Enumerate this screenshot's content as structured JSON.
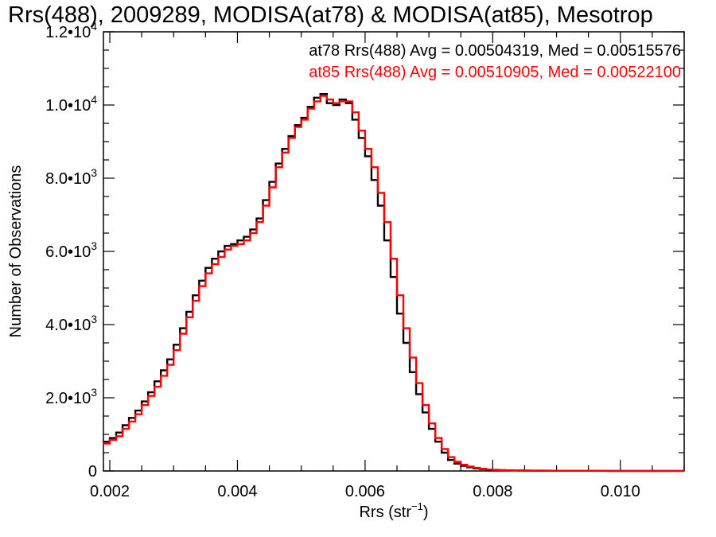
{
  "chart_data": {
    "type": "histogram-step",
    "title": "Rrs(488), 2009289, MODISA(at78) & MODISA(at85), Mesotrop",
    "xlabel": "Rrs (str",
    "xlabel_superscript": "−1",
    "xlabel_close": ")",
    "ylabel": "Number of Observations",
    "xlim": [
      0.0019,
      0.011
    ],
    "ylim": [
      0,
      12000
    ],
    "x_ticks": [
      {
        "value": 0.002,
        "label": "0.002"
      },
      {
        "value": 0.004,
        "label": "0.004"
      },
      {
        "value": 0.006,
        "label": "0.006"
      },
      {
        "value": 0.008,
        "label": "0.008"
      },
      {
        "value": 0.01,
        "label": "0.010"
      }
    ],
    "y_ticks": [
      {
        "value": 0,
        "mantissa": "0",
        "exponent": ""
      },
      {
        "value": 2000,
        "mantissa": "2.0•10",
        "exponent": "3"
      },
      {
        "value": 4000,
        "mantissa": "4.0•10",
        "exponent": "3"
      },
      {
        "value": 6000,
        "mantissa": "6.0•10",
        "exponent": "3"
      },
      {
        "value": 8000,
        "mantissa": "8.0•10",
        "exponent": "3"
      },
      {
        "value": 10000,
        "mantissa": "1.0•10",
        "exponent": "4"
      },
      {
        "value": 12000,
        "mantissa": "1.2•10",
        "exponent": "4"
      }
    ],
    "stats": [
      {
        "text": "at78 Rrs(488) Avg = 0.00504319, Med = 0.00515576",
        "color": "#000000"
      },
      {
        "text": "at85 Rrs(488) Avg = 0.00510905, Med = 0.00522100",
        "color": "#ff0000"
      }
    ],
    "series": [
      {
        "color": "#000000",
        "x": [
          0.0019,
          0.002,
          0.0021,
          0.0022,
          0.0023,
          0.0024,
          0.0025,
          0.0026,
          0.0027,
          0.0028,
          0.0029,
          0.003,
          0.0031,
          0.0032,
          0.0033,
          0.0034,
          0.0035,
          0.0036,
          0.0037,
          0.0038,
          0.0039,
          0.004,
          0.0041,
          0.0042,
          0.0043,
          0.0044,
          0.0045,
          0.0046,
          0.0047,
          0.0048,
          0.0049,
          0.005,
          0.0051,
          0.0052,
          0.0053,
          0.0054,
          0.0055,
          0.0056,
          0.0057,
          0.0058,
          0.0059,
          0.006,
          0.0061,
          0.0062,
          0.0063,
          0.0064,
          0.0065,
          0.0066,
          0.0067,
          0.0068,
          0.0069,
          0.007,
          0.0071,
          0.0072,
          0.0073,
          0.0074,
          0.0075,
          0.0076,
          0.0077,
          0.0078,
          0.0079,
          0.008,
          0.0081,
          0.0082,
          0.0083,
          0.0084,
          0.0085,
          0.0086,
          0.0087,
          0.0088,
          0.0089,
          0.009,
          0.0091,
          0.0092,
          0.0093,
          0.0094,
          0.0095,
          0.0096,
          0.0097,
          0.0098,
          0.0099,
          0.01,
          0.0101,
          0.0102,
          0.0103,
          0.0104,
          0.0105,
          0.0106,
          0.0107,
          0.0108,
          0.0109
        ],
        "values": [
          800,
          900,
          1050,
          1250,
          1450,
          1650,
          1900,
          2150,
          2450,
          2750,
          3050,
          3450,
          3900,
          4350,
          4800,
          5200,
          5550,
          5800,
          6000,
          6150,
          6200,
          6300,
          6400,
          6600,
          6900,
          7400,
          7900,
          8400,
          8800,
          9150,
          9450,
          9650,
          9950,
          10200,
          10300,
          10050,
          10000,
          10150,
          10050,
          9600,
          9100,
          8600,
          7950,
          7250,
          6300,
          5300,
          4300,
          3500,
          2700,
          2100,
          1600,
          1150,
          800,
          500,
          300,
          200,
          140,
          100,
          70,
          50,
          30,
          25,
          20,
          18,
          15,
          12,
          10,
          9,
          8,
          7,
          6,
          6,
          5,
          5,
          4,
          4,
          3,
          3,
          3,
          2,
          2,
          2,
          2,
          1,
          1,
          1,
          1,
          1,
          1,
          1,
          1
        ]
      },
      {
        "color": "#ff0000",
        "x": [
          0.0019,
          0.002,
          0.0021,
          0.0022,
          0.0023,
          0.0024,
          0.0025,
          0.0026,
          0.0027,
          0.0028,
          0.0029,
          0.003,
          0.0031,
          0.0032,
          0.0033,
          0.0034,
          0.0035,
          0.0036,
          0.0037,
          0.0038,
          0.0039,
          0.004,
          0.0041,
          0.0042,
          0.0043,
          0.0044,
          0.0045,
          0.0046,
          0.0047,
          0.0048,
          0.0049,
          0.005,
          0.0051,
          0.0052,
          0.0053,
          0.0054,
          0.0055,
          0.0056,
          0.0057,
          0.0058,
          0.0059,
          0.006,
          0.0061,
          0.0062,
          0.0063,
          0.0064,
          0.0065,
          0.0066,
          0.0067,
          0.0068,
          0.0069,
          0.007,
          0.0071,
          0.0072,
          0.0073,
          0.0074,
          0.0075,
          0.0076,
          0.0077,
          0.0078,
          0.0079,
          0.008,
          0.0081,
          0.0082,
          0.0083,
          0.0084,
          0.0085,
          0.0086,
          0.0087,
          0.0088,
          0.0089,
          0.009,
          0.0091,
          0.0092,
          0.0093,
          0.0094,
          0.0095,
          0.0096,
          0.0097,
          0.0098,
          0.0099,
          0.01,
          0.0101,
          0.0102,
          0.0103,
          0.0104,
          0.0105,
          0.0106,
          0.0107,
          0.0108,
          0.0109
        ],
        "values": [
          750,
          850,
          950,
          1150,
          1350,
          1550,
          1800,
          2050,
          2300,
          2600,
          2900,
          3300,
          3750,
          4200,
          4650,
          5050,
          5400,
          5650,
          5850,
          6050,
          6150,
          6200,
          6300,
          6500,
          6800,
          7250,
          7750,
          8300,
          8700,
          9100,
          9400,
          9600,
          9900,
          10100,
          10250,
          10150,
          10050,
          10100,
          10100,
          9800,
          9300,
          8800,
          8300,
          7600,
          6800,
          5800,
          4800,
          3900,
          3100,
          2400,
          1800,
          1300,
          900,
          600,
          380,
          250,
          170,
          120,
          85,
          60,
          40,
          30,
          24,
          20,
          16,
          14,
          12,
          10,
          9,
          8,
          7,
          6,
          5,
          5,
          4,
          4,
          3,
          3,
          3,
          2,
          2,
          2,
          2,
          1,
          1,
          1,
          1,
          1,
          1,
          1,
          1
        ]
      }
    ]
  }
}
